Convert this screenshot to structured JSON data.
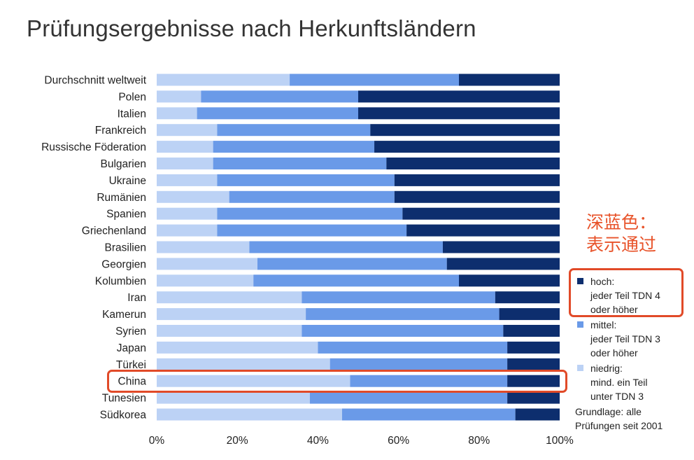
{
  "chart_data": {
    "type": "bar",
    "orientation": "horizontal",
    "stacked": true,
    "title": "Prüfungsergebnisse nach Herkunftsländern",
    "categories": [
      "Durchschnitt weltweit",
      "Polen",
      "Italien",
      "Frankreich",
      "Russische Föderation",
      "Bulgarien",
      "Ukraine",
      "Rumänien",
      "Spanien",
      "Griechenland",
      "Brasilien",
      "Georgien",
      "Kolumbien",
      "Iran",
      "Kamerun",
      "Syrien",
      "Japan",
      "Türkei",
      "China",
      "Tunesien",
      "Südkorea"
    ],
    "series": [
      {
        "name": "niedrig",
        "color": "#bcd2f5",
        "values": [
          33,
          11,
          10,
          15,
          14,
          14,
          15,
          18,
          15,
          15,
          23,
          25,
          24,
          36,
          37,
          36,
          40,
          43,
          48,
          38,
          46
        ]
      },
      {
        "name": "mittel",
        "color": "#6a9ae8",
        "values": [
          42,
          39,
          40,
          38,
          40,
          43,
          44,
          41,
          46,
          47,
          48,
          47,
          51,
          48,
          48,
          50,
          47,
          44,
          39,
          49,
          43
        ]
      },
      {
        "name": "hoch",
        "color": "#0d2e6e",
        "values": [
          25,
          50,
          50,
          47,
          46,
          43,
          41,
          41,
          39,
          38,
          29,
          28,
          25,
          16,
          15,
          14,
          13,
          13,
          13,
          13,
          11
        ]
      }
    ],
    "xlim": [
      0,
      100
    ],
    "xticks": [
      "0%",
      "20%",
      "40%",
      "60%",
      "80%",
      "100%"
    ],
    "unit": "%",
    "legend_position": "right",
    "highlight_category": "China"
  },
  "legend": {
    "items": [
      {
        "name": "hoch:",
        "desc": "jeder Teil TDN 4\noder höher",
        "color": "#0d2e6e"
      },
      {
        "name": "mittel:",
        "desc": "jeder Teil TDN 3\noder höher",
        "color": "#6a9ae8"
      },
      {
        "name": "niedrig:",
        "desc": "mind. ein Teil\nunter TDN 3",
        "color": "#bcd2f5"
      }
    ],
    "note": "Grundlage: alle\nPrüfungen seit 2001"
  },
  "annotation": {
    "text": "深蓝色：\n表示通过",
    "color": "#e8532a"
  }
}
